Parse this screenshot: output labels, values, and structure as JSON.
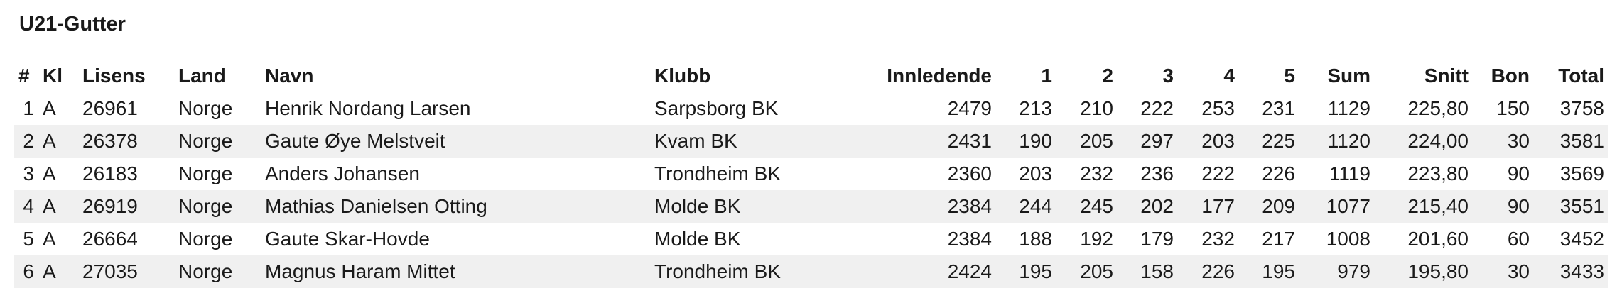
{
  "section": {
    "title": "U21-Gutter"
  },
  "table": {
    "headers": {
      "rank": "#",
      "kl": "Kl",
      "lisens": "Lisens",
      "land": "Land",
      "navn": "Navn",
      "klubb": "Klubb",
      "innledende": "Innledende",
      "g1": "1",
      "g2": "2",
      "g3": "3",
      "g4": "4",
      "g5": "5",
      "sum": "Sum",
      "snitt": "Snitt",
      "bon": "Bon",
      "total": "Total"
    },
    "rows": [
      {
        "rank": "1",
        "kl": "A",
        "lisens": "26961",
        "land": "Norge",
        "navn": "Henrik Nordang Larsen",
        "klubb": "Sarpsborg BK",
        "innledende": "2479",
        "g1": "213",
        "g2": "210",
        "g3": "222",
        "g4": "253",
        "g5": "231",
        "sum": "1129",
        "snitt": "225,80",
        "bon": "150",
        "total": "3758"
      },
      {
        "rank": "2",
        "kl": "A",
        "lisens": "26378",
        "land": "Norge",
        "navn": "Gaute Øye Melstveit",
        "klubb": "Kvam BK",
        "innledende": "2431",
        "g1": "190",
        "g2": "205",
        "g3": "297",
        "g4": "203",
        "g5": "225",
        "sum": "1120",
        "snitt": "224,00",
        "bon": "30",
        "total": "3581"
      },
      {
        "rank": "3",
        "kl": "A",
        "lisens": "26183",
        "land": "Norge",
        "navn": "Anders Johansen",
        "klubb": "Trondheim BK",
        "innledende": "2360",
        "g1": "203",
        "g2": "232",
        "g3": "236",
        "g4": "222",
        "g5": "226",
        "sum": "1119",
        "snitt": "223,80",
        "bon": "90",
        "total": "3569"
      },
      {
        "rank": "4",
        "kl": "A",
        "lisens": "26919",
        "land": "Norge",
        "navn": "Mathias Danielsen Otting",
        "klubb": "Molde BK",
        "innledende": "2384",
        "g1": "244",
        "g2": "245",
        "g3": "202",
        "g4": "177",
        "g5": "209",
        "sum": "1077",
        "snitt": "215,40",
        "bon": "90",
        "total": "3551"
      },
      {
        "rank": "5",
        "kl": "A",
        "lisens": "26664",
        "land": "Norge",
        "navn": "Gaute Skar-Hovde",
        "klubb": "Molde BK",
        "innledende": "2384",
        "g1": "188",
        "g2": "192",
        "g3": "179",
        "g4": "232",
        "g5": "217",
        "sum": "1008",
        "snitt": "201,60",
        "bon": "60",
        "total": "3452"
      },
      {
        "rank": "6",
        "kl": "A",
        "lisens": "27035",
        "land": "Norge",
        "navn": "Magnus Haram Mittet",
        "klubb": "Trondheim BK",
        "innledende": "2424",
        "g1": "195",
        "g2": "205",
        "g3": "158",
        "g4": "226",
        "g5": "195",
        "sum": "979",
        "snitt": "195,80",
        "bon": "30",
        "total": "3433"
      }
    ]
  }
}
